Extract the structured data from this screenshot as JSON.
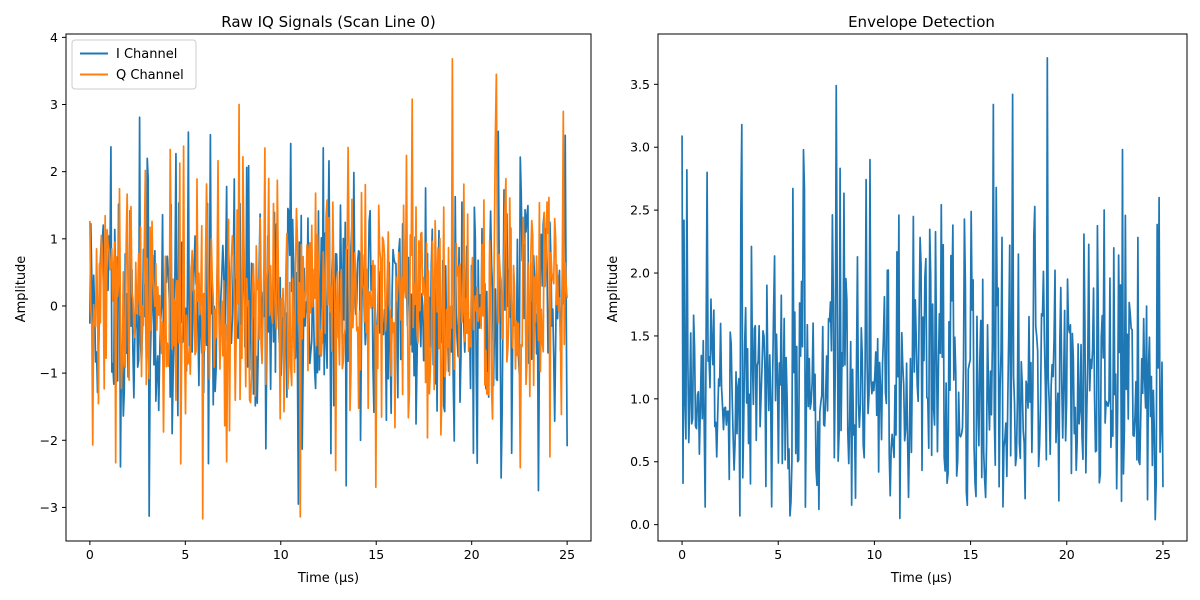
{
  "chart_data": [
    {
      "type": "line",
      "title": "Raw IQ Signals (Scan Line 0)",
      "xlabel": "Time (µs)",
      "ylabel": "Amplitude",
      "xlim": [
        -1.25,
        26.25
      ],
      "ylim": [
        -3.5,
        4.05
      ],
      "xticks": [
        0,
        5,
        10,
        15,
        20,
        25
      ],
      "xtick_labels": [
        "0",
        "5",
        "10",
        "15",
        "20",
        "25"
      ],
      "yticks": [
        -3,
        -2,
        -1,
        0,
        1,
        2,
        3,
        4
      ],
      "ytick_labels": [
        "−3",
        "−2",
        "−1",
        "0",
        "1",
        "2",
        "3",
        "4"
      ],
      "grid": false,
      "legend": "top-left",
      "x_range": [
        0,
        25
      ],
      "points": 500,
      "series": [
        {
          "name": "I Channel",
          "color": "#1f77b4",
          "spread": 0.95,
          "seed": 11,
          "peaks": [
            [
              3.1,
              -3.13
            ],
            [
              2.6,
              2.81
            ],
            [
              10.9,
              -2.95
            ],
            [
              23.5,
              -2.75
            ],
            [
              24.9,
              2.54
            ],
            [
              1.1,
              2.37
            ],
            [
              6.3,
              2.55
            ],
            [
              10.5,
              2.42
            ],
            [
              21.4,
              2.6
            ]
          ]
        },
        {
          "name": "Q Channel",
          "color": "#ff7f0e",
          "spread": 0.9,
          "seed": 29,
          "peaks": [
            [
              19.0,
              3.68
            ],
            [
              21.3,
              3.45
            ],
            [
              16.9,
              3.08
            ],
            [
              7.8,
              3.0
            ],
            [
              5.9,
              -3.17
            ],
            [
              11.0,
              -3.14
            ],
            [
              15.0,
              -2.7
            ],
            [
              0.15,
              -2.07
            ],
            [
              12.9,
              -2.45
            ],
            [
              4.2,
              2.33
            ]
          ]
        }
      ]
    },
    {
      "type": "line",
      "title": "Envelope Detection",
      "xlabel": "Time (µs)",
      "ylabel": "Amplitude",
      "xlim": [
        -1.25,
        26.25
      ],
      "ylim": [
        -0.13,
        3.9
      ],
      "xticks": [
        0,
        5,
        10,
        15,
        20,
        25
      ],
      "xtick_labels": [
        "0",
        "5",
        "10",
        "15",
        "20",
        "25"
      ],
      "yticks": [
        0.0,
        0.5,
        1.0,
        1.5,
        2.0,
        2.5,
        3.0,
        3.5
      ],
      "ytick_labels": [
        "0.0",
        "0.5",
        "1.0",
        "1.5",
        "2.0",
        "2.5",
        "3.0",
        "3.5"
      ],
      "grid": false,
      "legend": "none",
      "x_range": [
        0,
        25
      ],
      "points": 500,
      "series": [
        {
          "name": "",
          "color": "#1f77b4",
          "spread": 0.5,
          "seed": 47,
          "peaks": [
            [
              19.0,
              3.71
            ],
            [
              8.0,
              3.49
            ],
            [
              17.2,
              3.42
            ],
            [
              16.2,
              3.34
            ],
            [
              6.3,
              2.98
            ],
            [
              3.1,
              3.18
            ],
            [
              24.8,
              2.6
            ],
            [
              0.1,
              2.42
            ],
            [
              1.3,
              2.8
            ],
            [
              11.3,
              0.05
            ],
            [
              24.6,
              0.04
            ],
            [
              3.0,
              0.07
            ],
            [
              5.6,
              0.07
            ]
          ]
        }
      ]
    }
  ],
  "colors": {
    "i_channel": "#1f77b4",
    "q_channel": "#ff7f0e"
  }
}
